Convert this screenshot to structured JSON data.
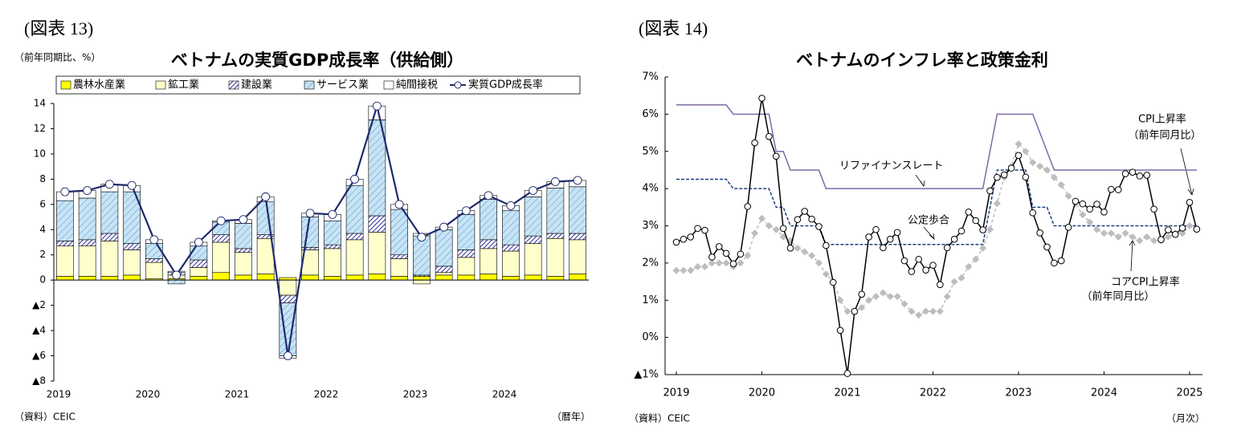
{
  "chart_data": [
    {
      "type": "bar",
      "figure_label": "(図表 13)",
      "title": "ベトナムの実質GDP成長率（供給側）",
      "y_label": "（前年同期比、%）",
      "source": "（資料）CEIC",
      "x_label": "（暦年）",
      "categories": [
        "2019",
        null,
        null,
        null,
        "2020",
        null,
        null,
        null,
        "2021",
        null,
        null,
        null,
        "2022",
        null,
        null,
        null,
        "2023",
        null,
        null,
        null,
        "2024",
        null,
        null,
        null
      ],
      "series": [
        {
          "name": "農林水産業",
          "type": "bar",
          "color": "#ffff00",
          "values": [
            0.3,
            0.3,
            0.3,
            0.4,
            0.1,
            0.1,
            0.3,
            0.6,
            0.4,
            0.5,
            0.2,
            0.4,
            0.3,
            0.4,
            0.5,
            0.3,
            0.3,
            0.4,
            0.4,
            0.5,
            0.3,
            0.4,
            0.3,
            0.5
          ]
        },
        {
          "name": "鉱工業",
          "type": "bar",
          "color": "#ffffcc",
          "values": [
            2.4,
            2.4,
            2.8,
            2.0,
            1.3,
            0.3,
            0.7,
            2.4,
            1.8,
            2.8,
            -1.2,
            2.0,
            2.2,
            2.8,
            3.3,
            1.4,
            -0.3,
            0.2,
            1.4,
            2.0,
            2.0,
            2.5,
            3.0,
            2.7
          ]
        },
        {
          "name": "建設業",
          "type": "bar",
          "color": "#ffffff",
          "hatch": "#3c3c9c",
          "values": [
            0.4,
            0.5,
            0.6,
            0.5,
            0.3,
            0.2,
            0.6,
            0.6,
            0.3,
            0.3,
            -0.6,
            0.2,
            0.3,
            0.5,
            1.3,
            0.3,
            0.1,
            0.5,
            0.6,
            0.7,
            0.5,
            0.6,
            0.4,
            0.5
          ]
        },
        {
          "name": "サービス業",
          "type": "bar",
          "color": "#c6e4f5",
          "hatch": "#5a8fc0",
          "values": [
            3.2,
            3.3,
            3.3,
            4.1,
            1.2,
            -0.3,
            1.1,
            1.0,
            2.0,
            2.6,
            -4.2,
            2.4,
            1.9,
            3.8,
            7.6,
            3.6,
            3.1,
            2.9,
            2.8,
            3.2,
            2.7,
            3.1,
            3.6,
            3.7
          ]
        },
        {
          "name": "純間接税",
          "type": "bar",
          "color": "#ffffff",
          "values": [
            0.7,
            0.6,
            0.6,
            0.5,
            0.3,
            0.1,
            0.3,
            0.1,
            0.3,
            0.4,
            -0.2,
            0.3,
            0.5,
            0.5,
            1.1,
            0.4,
            0.2,
            0.2,
            0.3,
            0.3,
            0.4,
            0.5,
            0.5,
            0.5
          ]
        },
        {
          "name": "実質GDP成長率",
          "type": "line",
          "color": "#1f2a6b",
          "values": [
            7.0,
            7.1,
            7.6,
            7.5,
            3.2,
            0.4,
            3.0,
            4.7,
            4.8,
            6.6,
            -6.0,
            5.3,
            5.2,
            8.0,
            13.8,
            6.0,
            3.4,
            4.2,
            5.5,
            6.7,
            5.9,
            7.1,
            7.8,
            7.9
          ]
        }
      ],
      "ylim": [
        -8,
        14
      ],
      "yticks": [
        {
          "value": -8,
          "label": "▲8"
        },
        {
          "value": -6,
          "label": "▲6"
        },
        {
          "value": -4,
          "label": "▲4"
        },
        {
          "value": -2,
          "label": "▲2"
        },
        0,
        2,
        4,
        6,
        8,
        10,
        12,
        14
      ]
    },
    {
      "type": "line",
      "figure_label": "(図表 14)",
      "title": "ベトナムのインフレ率と政策金利",
      "source": "（資料）CEIC",
      "x_label": "（月次）",
      "categories": [
        "2019",
        null,
        null,
        null,
        null,
        null,
        null,
        null,
        null,
        null,
        null,
        null,
        "2020",
        null,
        null,
        null,
        null,
        null,
        null,
        null,
        null,
        null,
        null,
        null,
        "2021",
        null,
        null,
        null,
        null,
        null,
        null,
        null,
        null,
        null,
        null,
        null,
        "2022",
        null,
        null,
        null,
        null,
        null,
        null,
        null,
        null,
        null,
        null,
        null,
        "2023",
        null,
        null,
        null,
        null,
        null,
        null,
        null,
        null,
        null,
        null,
        null,
        "2024",
        null,
        null,
        null,
        null,
        null,
        null,
        null,
        null,
        null,
        null,
        null,
        "2025",
        null
      ],
      "series": [
        {
          "name": "リファイナンスレート",
          "color": "#7f6aa6",
          "style": "solid",
          "values": [
            6.25,
            6.25,
            6.25,
            6.25,
            6.25,
            6.25,
            6.25,
            6.25,
            6,
            6,
            6,
            6,
            6,
            6,
            5,
            5,
            4.5,
            4.5,
            4.5,
            4.5,
            4.5,
            4,
            4,
            4,
            4,
            4,
            4,
            4,
            4,
            4,
            4,
            4,
            4,
            4,
            4,
            4,
            4,
            4,
            4,
            4,
            4,
            4,
            4,
            4,
            5,
            6,
            6,
            6,
            6,
            6,
            6,
            5.5,
            5,
            4.5,
            4.5,
            4.5,
            4.5,
            4.5,
            4.5,
            4.5,
            4.5,
            4.5,
            4.5,
            4.5,
            4.5,
            4.5,
            4.5,
            4.5,
            4.5,
            4.5,
            4.5,
            4.5,
            4.5,
            4.5
          ]
        },
        {
          "name": "公定歩合",
          "color": "#1f3f7f",
          "style": "dashed",
          "values": [
            4.25,
            4.25,
            4.25,
            4.25,
            4.25,
            4.25,
            4.25,
            4.25,
            4,
            4,
            4,
            4,
            4,
            4,
            3.5,
            3.5,
            3,
            3,
            3,
            3,
            3,
            2.5,
            2.5,
            2.5,
            2.5,
            2.5,
            2.5,
            2.5,
            2.5,
            2.5,
            2.5,
            2.5,
            2.5,
            2.5,
            2.5,
            2.5,
            2.5,
            2.5,
            2.5,
            2.5,
            2.5,
            2.5,
            2.5,
            2.5,
            3.5,
            4.5,
            4.5,
            4.5,
            4.5,
            4.5,
            3.5,
            3.5,
            3.5,
            3,
            3,
            3,
            3,
            3,
            3,
            3,
            3,
            3,
            3,
            3,
            3,
            3,
            3,
            3,
            3,
            3,
            3,
            3,
            3,
            3
          ]
        },
        {
          "name": "コアCPI上昇率",
          "color": "#bdbdbd",
          "style": "dashed",
          "marker": "diamond",
          "values": [
            1.8,
            1.8,
            1.8,
            1.9,
            1.9,
            2.0,
            2.0,
            2.0,
            1.9,
            2.0,
            2.2,
            2.8,
            3.2,
            3.0,
            2.9,
            2.7,
            2.6,
            2.4,
            2.3,
            2.2,
            2.0,
            1.7,
            1.5,
            1.0,
            0.7,
            0.7,
            0.8,
            1.0,
            1.1,
            1.2,
            1.1,
            1.1,
            0.9,
            0.7,
            0.6,
            0.7,
            0.7,
            0.7,
            1.1,
            1.5,
            1.6,
            1.9,
            2.1,
            2.4,
            2.9,
            3.6,
            4.3,
            4.6,
            5.2,
            5.0,
            4.7,
            4.6,
            4.5,
            4.3,
            4.1,
            3.8,
            3.6,
            3.3,
            3.1,
            2.9,
            2.8,
            2.8,
            2.7,
            2.8,
            2.7,
            2.6,
            2.7,
            2.6,
            2.6,
            2.7,
            2.8,
            2.8,
            3.0,
            2.9
          ]
        },
        {
          "name": "CPI上昇率",
          "color": "#000000",
          "style": "solid",
          "marker": "circle",
          "values": [
            2.56,
            2.64,
            2.7,
            2.93,
            2.88,
            2.16,
            2.44,
            2.26,
            1.98,
            2.24,
            3.52,
            5.23,
            6.43,
            5.4,
            4.87,
            2.93,
            2.4,
            3.17,
            3.39,
            3.18,
            2.98,
            2.47,
            1.48,
            0.19,
            -0.97,
            0.7,
            1.16,
            2.7,
            2.9,
            2.41,
            2.64,
            2.82,
            2.06,
            1.77,
            2.1,
            1.81,
            1.94,
            1.42,
            2.41,
            2.64,
            2.86,
            3.37,
            3.14,
            2.89,
            3.94,
            4.3,
            4.37,
            4.55,
            4.89,
            4.31,
            3.35,
            2.81,
            2.43,
            2.0,
            2.06,
            2.96,
            3.66,
            3.59,
            3.45,
            3.58,
            3.37,
            3.98,
            3.97,
            4.4,
            4.44,
            4.34,
            4.36,
            3.45,
            2.63,
            2.89,
            2.77,
            2.94,
            3.63,
            2.91
          ]
        }
      ],
      "annotations": [
        "（前年同月比）",
        "（前年同月比）"
      ],
      "ylim": [
        -1,
        7
      ],
      "yticks": [
        {
          "value": -1,
          "label": "▲1%"
        },
        {
          "value": 0,
          "label": "0%"
        },
        {
          "value": 1,
          "label": "1%"
        },
        {
          "value": 2,
          "label": "2%"
        },
        {
          "value": 3,
          "label": "3%"
        },
        {
          "value": 4,
          "label": "4%"
        },
        {
          "value": 5,
          "label": "5%"
        },
        {
          "value": 6,
          "label": "6%"
        },
        {
          "value": 7,
          "label": "7%"
        }
      ]
    }
  ]
}
